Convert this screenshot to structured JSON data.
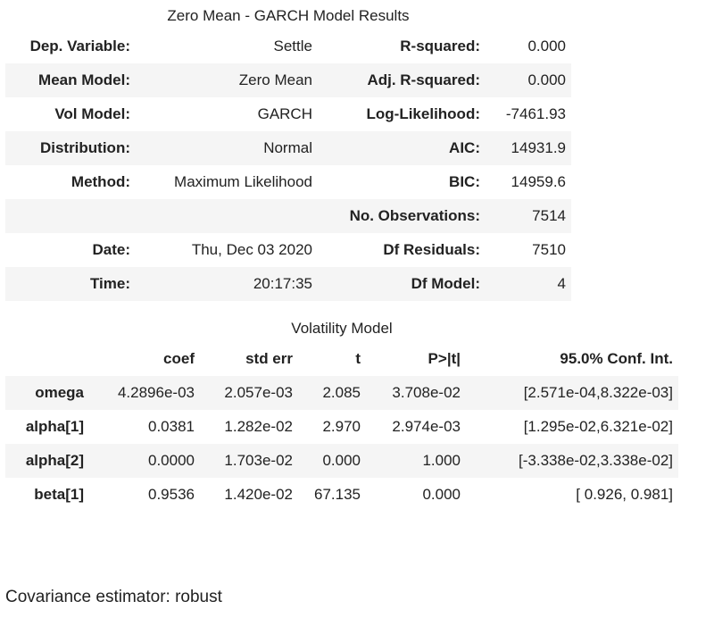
{
  "summary": {
    "title": "Zero Mean - GARCH Model Results",
    "rows": [
      [
        "Dep. Variable:",
        "Settle",
        "R-squared:",
        "0.000"
      ],
      [
        "Mean Model:",
        "Zero Mean",
        "Adj. R-squared:",
        "0.000"
      ],
      [
        "Vol Model:",
        "GARCH",
        "Log-Likelihood:",
        "-7461.93"
      ],
      [
        "Distribution:",
        "Normal",
        "AIC:",
        "14931.9"
      ],
      [
        "Method:",
        "Maximum Likelihood",
        "BIC:",
        "14959.6"
      ],
      [
        "",
        "",
        "No. Observations:",
        "7514"
      ],
      [
        "Date:",
        "Thu, Dec 03 2020",
        "Df Residuals:",
        "7510"
      ],
      [
        "Time:",
        "20:17:35",
        "Df Model:",
        "4"
      ]
    ]
  },
  "volatility": {
    "title": "Volatility Model",
    "headers": [
      "",
      "coef",
      "std err",
      "t",
      "P>|t|",
      "95.0% Conf. Int."
    ],
    "rows": [
      [
        "omega",
        "4.2896e-03",
        "2.057e-03",
        "2.085",
        "3.708e-02",
        "[2.571e-04,8.322e-03]"
      ],
      [
        "alpha[1]",
        "0.0381",
        "1.282e-02",
        "2.970",
        "2.974e-03",
        "[1.295e-02,6.321e-02]"
      ],
      [
        "alpha[2]",
        "0.0000",
        "1.703e-02",
        "0.000",
        "1.000",
        "[-3.338e-02,3.338e-02]"
      ],
      [
        "beta[1]",
        "0.9536",
        "1.420e-02",
        "67.135",
        "0.000",
        "[ 0.926, 0.981]"
      ]
    ]
  },
  "footer": "Covariance estimator: robust"
}
